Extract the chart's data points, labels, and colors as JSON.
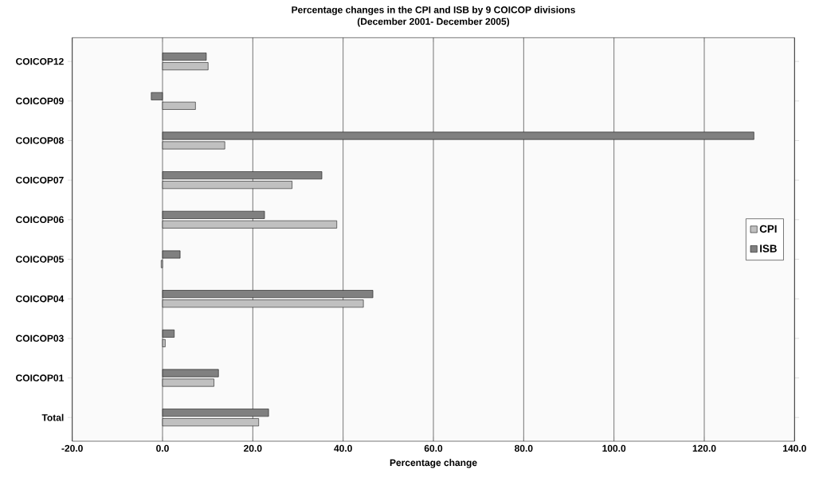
{
  "chart_data": {
    "type": "bar",
    "orientation": "horizontal",
    "title": "Percentage changes in the CPI and ISB by 9 COICOP divisions",
    "subtitle": "(December 2001- December 2005)",
    "xlabel": "Percentage change",
    "categories": [
      "COICOP12",
      "COICOP09",
      "COICOP08",
      "COICOP07",
      "COICOP06",
      "COICOP05",
      "COICOP04",
      "COICOP03",
      "COICOP01",
      "Total"
    ],
    "series": [
      {
        "name": "CPI",
        "color": "#c0c0c0",
        "values": [
          10.1,
          7.3,
          13.8,
          28.7,
          38.6,
          -0.3,
          44.5,
          0.6,
          11.4,
          21.3
        ]
      },
      {
        "name": "ISB",
        "color": "#808080",
        "values": [
          9.7,
          -2.5,
          131,
          35.3,
          22.6,
          3.9,
          46.6,
          2.6,
          12.4,
          23.5
        ]
      }
    ],
    "xlim": [
      -20,
      140
    ],
    "xticks": [
      {
        "value": -20,
        "label": "-20.0"
      },
      {
        "value": 0,
        "label": "0.0"
      },
      {
        "value": 20,
        "label": "20.0"
      },
      {
        "value": 40,
        "label": "40.0"
      },
      {
        "value": 60,
        "label": "60.0"
      },
      {
        "value": 80,
        "label": "80.0"
      },
      {
        "value": 100,
        "label": "100.0"
      },
      {
        "value": 120,
        "label": "120.0"
      },
      {
        "value": 140,
        "label": "140.0"
      }
    ],
    "grid": "x",
    "legend": "right"
  }
}
